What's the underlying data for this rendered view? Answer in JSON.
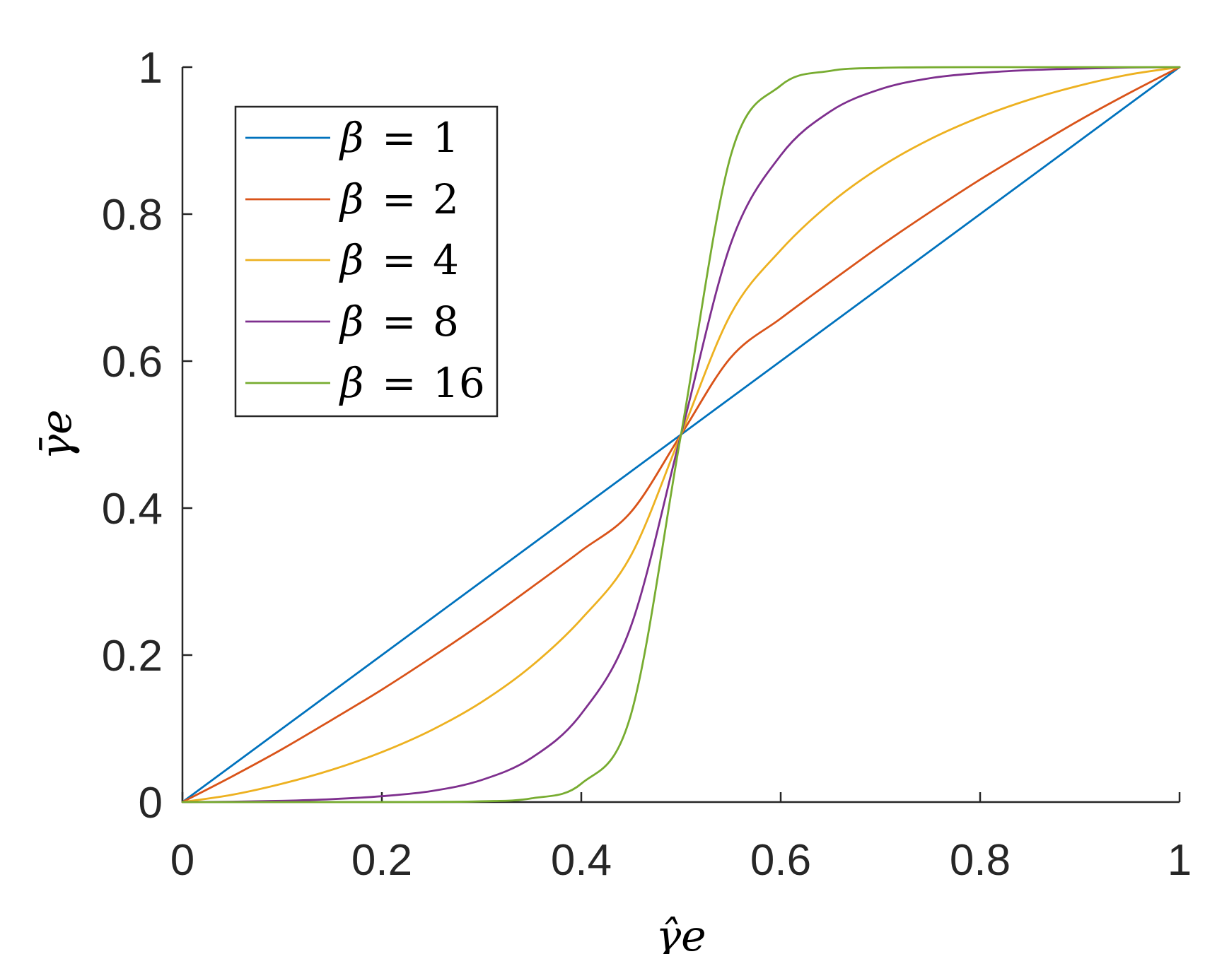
{
  "chart_data": {
    "type": "line",
    "xlabel": "γ̂e",
    "ylabel": "γ̄e",
    "xlim": [
      0,
      1
    ],
    "ylim": [
      0,
      1
    ],
    "xticks": [
      0,
      0.2,
      0.4,
      0.6,
      0.8,
      1
    ],
    "yticks": [
      0,
      0.2,
      0.4,
      0.6,
      0.8,
      1
    ],
    "xtick_labels": [
      "0",
      "0.2",
      "0.4",
      "0.6",
      "0.8",
      "1"
    ],
    "ytick_labels": [
      "0",
      "0.2",
      "0.4",
      "0.6",
      "0.8",
      "1"
    ],
    "grid": false,
    "legend_position": "top-left",
    "x": [
      0,
      0.05,
      0.1,
      0.15,
      0.2,
      0.25,
      0.3,
      0.35,
      0.4,
      0.45,
      0.5,
      0.55,
      0.6,
      0.65,
      0.7,
      0.75,
      0.8,
      0.85,
      0.9,
      0.95,
      1
    ],
    "series": [
      {
        "name": "β = 1",
        "beta_symbol": "β",
        "beta_value": "1",
        "color": "#0072BD",
        "values": [
          0,
          0.05,
          0.1,
          0.15,
          0.2,
          0.25,
          0.3,
          0.35,
          0.4,
          0.45,
          0.5,
          0.55,
          0.6,
          0.65,
          0.7,
          0.75,
          0.8,
          0.85,
          0.9,
          0.95,
          1
        ]
      },
      {
        "name": "β = 2",
        "beta_symbol": "β",
        "beta_value": "2",
        "color": "#D95319",
        "values": [
          0,
          0.035,
          0.072,
          0.112,
          0.153,
          0.197,
          0.243,
          0.292,
          0.342,
          0.395,
          0.5,
          0.605,
          0.658,
          0.708,
          0.757,
          0.803,
          0.847,
          0.888,
          0.928,
          0.965,
          1
        ]
      },
      {
        "name": "β = 4",
        "beta_symbol": "β",
        "beta_value": "4",
        "color": "#EDB120",
        "values": [
          0,
          0.01,
          0.025,
          0.044,
          0.068,
          0.098,
          0.136,
          0.185,
          0.249,
          0.336,
          0.5,
          0.664,
          0.751,
          0.815,
          0.864,
          0.902,
          0.932,
          0.956,
          0.975,
          0.99,
          1
        ]
      },
      {
        "name": "β = 8",
        "beta_symbol": "β",
        "beta_value": "8",
        "color": "#7E2F8E",
        "values": [
          0,
          0.0005,
          0.0017,
          0.004,
          0.008,
          0.015,
          0.03,
          0.06,
          0.12,
          0.24,
          0.5,
          0.76,
          0.88,
          0.94,
          0.97,
          0.985,
          0.992,
          0.996,
          0.998,
          0.9995,
          1
        ]
      },
      {
        "name": "β = 16",
        "beta_symbol": "β",
        "beta_value": "16",
        "color": "#77AC30",
        "values": [
          0,
          0,
          0,
          0,
          0,
          0.0002,
          0.001,
          0.005,
          0.025,
          0.12,
          0.5,
          0.88,
          0.975,
          0.995,
          0.999,
          0.9998,
          1,
          1,
          1,
          1,
          1
        ]
      }
    ]
  }
}
